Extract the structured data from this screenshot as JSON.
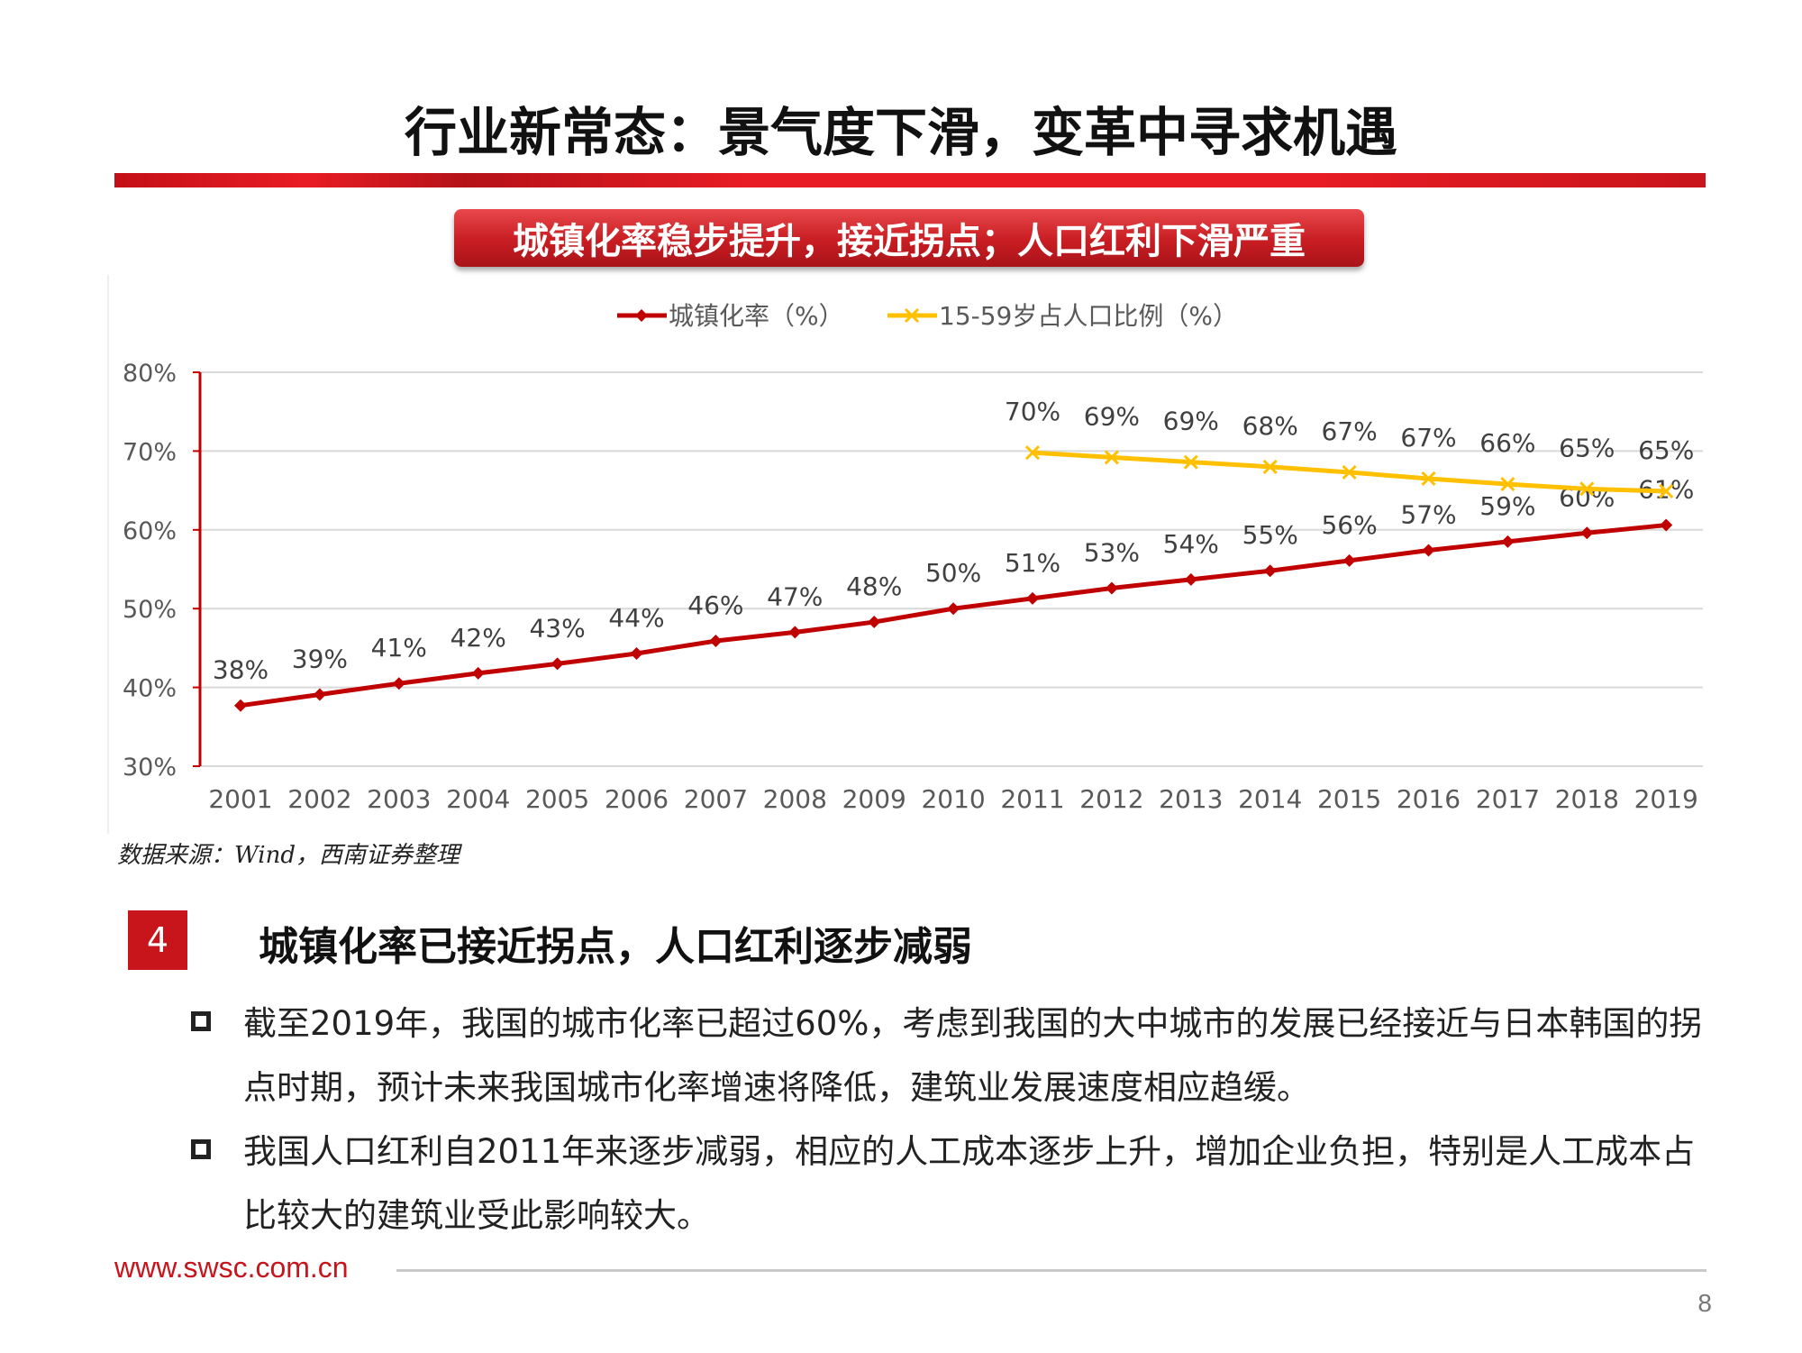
{
  "page": {
    "title": "行业新常态：景气度下滑，变革中寻求机遇",
    "chart_banner": "城镇化率稳步提升，接近拐点；人口红利下滑严重",
    "source": "数据来源：Wind，西南证券整理",
    "section_number": "4",
    "section_title": "城镇化率已接近拐点，人口红利逐步减弱",
    "bullets": [
      "截至2019年，我国的城市化率已超过60%，考虑到我国的大中城市的发展已经接近与日本韩国的拐点时期，预计未来我国城市化率增速将降低，建筑业发展速度相应趋缓。",
      "我国人口红利自2011年来逐步减弱，相应的人工成本逐步上升，增加企业负担，特别是人工成本占比较大的建筑业受此影响较大。"
    ],
    "footer_url": "www.swsc.com.cn",
    "page_number": "8"
  },
  "colors": {
    "urbanization": "#c00000",
    "working_age": "#ffc000",
    "brand_red": "#c8141b"
  },
  "chart_data": {
    "type": "line",
    "title": "",
    "xlabel": "",
    "ylabel": "",
    "ylim": [
      30,
      80
    ],
    "yticks": [
      "30%",
      "40%",
      "50%",
      "60%",
      "70%",
      "80%"
    ],
    "legend": "top-center",
    "grid": true,
    "categories": [
      "2001",
      "2002",
      "2003",
      "2004",
      "2005",
      "2006",
      "2007",
      "2008",
      "2009",
      "2010",
      "2011",
      "2012",
      "2013",
      "2014",
      "2015",
      "2016",
      "2017",
      "2018",
      "2019"
    ],
    "series": [
      {
        "name": "城镇化率（%）",
        "color": "#c00000",
        "marker": "diamond",
        "values": [
          37.7,
          39.1,
          40.5,
          41.8,
          43.0,
          44.3,
          45.9,
          47.0,
          48.3,
          50.0,
          51.3,
          52.6,
          53.7,
          54.8,
          56.1,
          57.4,
          58.5,
          59.6,
          60.6
        ],
        "labels": [
          "38%",
          "39%",
          "41%",
          "42%",
          "43%",
          "44%",
          "46%",
          "47%",
          "48%",
          "50%",
          "51%",
          "53%",
          "54%",
          "55%",
          "56%",
          "57%",
          "59%",
          "60%",
          "61%"
        ]
      },
      {
        "name": "15-59岁占人口比例（%）",
        "color": "#ffc000",
        "marker": "x",
        "values": [
          null,
          null,
          null,
          null,
          null,
          null,
          null,
          null,
          null,
          null,
          69.8,
          69.2,
          68.6,
          68.0,
          67.3,
          66.5,
          65.8,
          65.2,
          64.9
        ],
        "labels": [
          "",
          "",
          "",
          "",
          "",
          "",
          "",
          "",
          "",
          "",
          "70%",
          "69%",
          "69%",
          "68%",
          "67%",
          "67%",
          "66%",
          "65%",
          "65%"
        ]
      }
    ]
  }
}
